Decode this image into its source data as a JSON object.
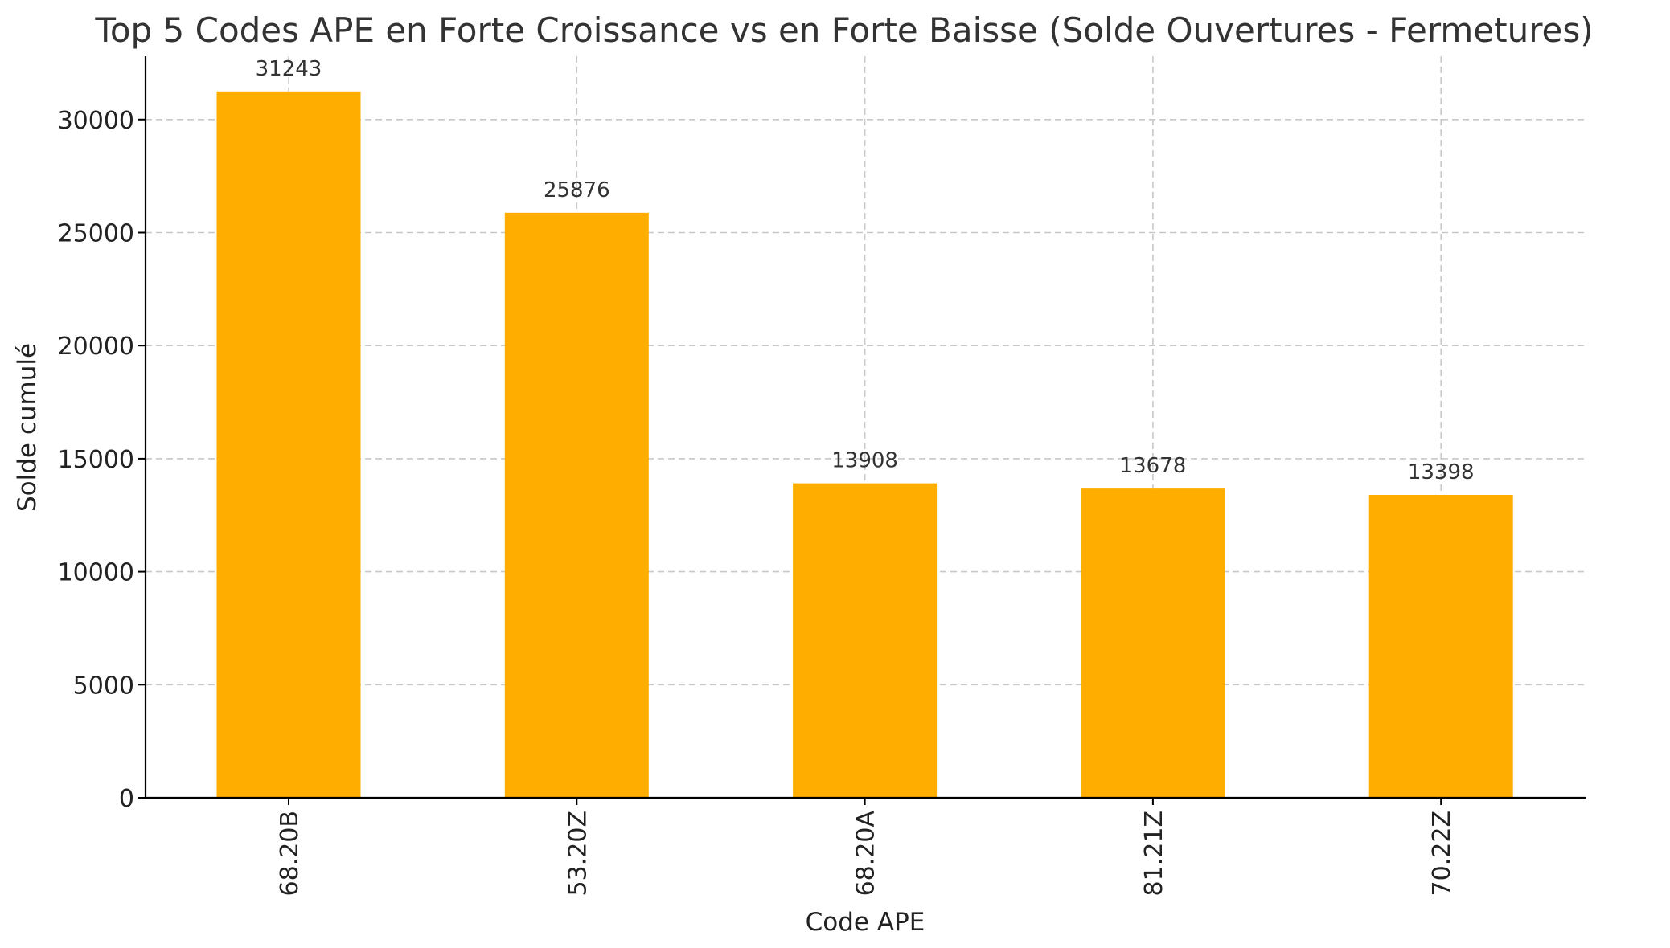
{
  "chart_data": {
    "type": "bar",
    "title": "Top 5 Codes APE en Forte Croissance vs en Forte Baisse (Solde Ouvertures - Fermetures)",
    "xlabel": "Code APE",
    "ylabel": "Solde cumulé",
    "categories": [
      "68.20B",
      "53.20Z",
      "68.20A",
      "81.21Z",
      "70.22Z"
    ],
    "values": [
      31243,
      25876,
      13908,
      13678,
      13398
    ],
    "data_labels": [
      "31243",
      "25876",
      "13908",
      "13678",
      "13398"
    ],
    "ylim": [
      0,
      32800
    ],
    "yticks": [
      0,
      5000,
      10000,
      15000,
      20000,
      25000,
      30000
    ],
    "ytick_labels": [
      "0",
      "5000",
      "10000",
      "15000",
      "20000",
      "25000",
      "30000"
    ],
    "grid": true,
    "bar_color": "#ffae00",
    "x_tick_rotation": "vertical"
  }
}
